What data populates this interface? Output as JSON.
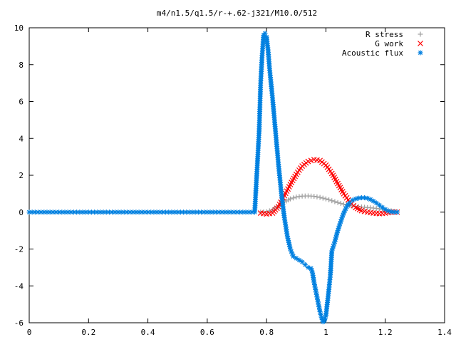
{
  "chart_data": {
    "type": "scatter",
    "title": "m4/n1.5/q1.5/r-+.62-j321/M10.0/512",
    "xlabel": "",
    "ylabel": "",
    "xlim": [
      0,
      1.4
    ],
    "ylim": [
      -6,
      10
    ],
    "x_ticks": [
      "0",
      "0.2",
      "0.4",
      "0.6",
      "0.8",
      "1",
      "1.2",
      "1.4"
    ],
    "y_ticks": [
      "-6",
      "-4",
      "-2",
      "0",
      "2",
      "4",
      "6",
      "8",
      "10"
    ],
    "grid": false,
    "legend_position": "top-right",
    "series": [
      {
        "name": "R stress",
        "marker": "+",
        "color": "#a0a0a0",
        "x": [
          0.78,
          0.8,
          0.82,
          0.84,
          0.86,
          0.88,
          0.9,
          0.92,
          0.94,
          0.96,
          0.98,
          1.0,
          1.02,
          1.04,
          1.06,
          1.08,
          1.1,
          1.12,
          1.14,
          1.16,
          1.18,
          1.2,
          1.22,
          1.24
        ],
        "y": [
          0,
          0.02,
          0.12,
          0.32,
          0.55,
          0.72,
          0.82,
          0.87,
          0.88,
          0.86,
          0.8,
          0.72,
          0.62,
          0.52,
          0.43,
          0.36,
          0.31,
          0.28,
          0.25,
          0.22,
          0.18,
          0.13,
          0.07,
          0.02
        ]
      },
      {
        "name": "G work",
        "marker": "x",
        "color": "#ff0000",
        "x": [
          0.78,
          0.8,
          0.82,
          0.84,
          0.86,
          0.88,
          0.9,
          0.92,
          0.94,
          0.96,
          0.98,
          1.0,
          1.02,
          1.04,
          1.06,
          1.08,
          1.1,
          1.12,
          1.14,
          1.16,
          1.18,
          1.2,
          1.22,
          1.24
        ],
        "y": [
          -0.05,
          -0.1,
          -0.05,
          0.3,
          0.9,
          1.5,
          2.05,
          2.5,
          2.75,
          2.85,
          2.8,
          2.55,
          2.1,
          1.55,
          1.0,
          0.55,
          0.25,
          0.08,
          0.0,
          -0.05,
          -0.08,
          -0.05,
          0.0,
          0.0
        ]
      },
      {
        "name": "Acoustic flux",
        "marker": "*",
        "color": "#0080e0",
        "x": [
          0.775,
          0.78,
          0.785,
          0.79,
          0.795,
          0.8,
          0.805,
          0.81,
          0.82,
          0.83,
          0.84,
          0.85,
          0.86,
          0.87,
          0.88,
          0.89,
          0.9,
          0.91,
          0.92,
          0.93,
          0.94,
          0.95,
          0.955,
          0.96,
          0.965,
          0.97,
          0.975,
          0.98,
          0.985,
          0.99,
          0.995,
          1.0,
          1.005,
          1.01,
          1.015,
          1.02,
          1.03,
          1.04,
          1.05,
          1.06,
          1.07,
          1.08,
          1.09,
          1.1,
          1.11,
          1.12,
          1.13,
          1.14,
          1.15,
          1.16,
          1.17,
          1.18,
          1.19,
          1.2,
          1.21,
          1.22,
          1.23,
          1.24
        ],
        "y": [
          4.4,
          7.0,
          8.5,
          9.6,
          9.7,
          9.5,
          8.8,
          7.8,
          6.2,
          4.4,
          2.6,
          1.0,
          -0.3,
          -1.3,
          -2.0,
          -2.4,
          -2.5,
          -2.6,
          -2.7,
          -2.85,
          -3.0,
          -3.05,
          -3.3,
          -3.8,
          -4.2,
          -4.6,
          -5.0,
          -5.4,
          -5.7,
          -5.95,
          -5.9,
          -5.6,
          -4.9,
          -4.2,
          -3.4,
          -2.1,
          -1.6,
          -1.0,
          -0.5,
          -0.05,
          0.3,
          0.5,
          0.65,
          0.72,
          0.76,
          0.78,
          0.78,
          0.75,
          0.69,
          0.6,
          0.5,
          0.38,
          0.26,
          0.15,
          0.07,
          0.02,
          0.0,
          0.0
        ]
      }
    ]
  }
}
